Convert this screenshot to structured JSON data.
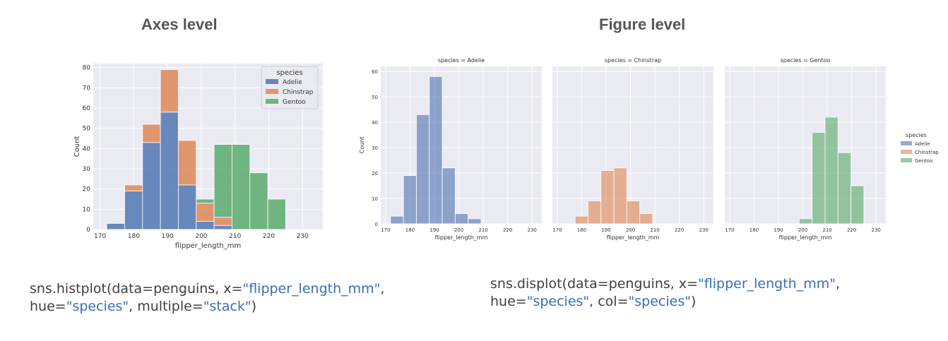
{
  "headings": {
    "axes_level": "Axes level",
    "figure_level": "Figure level"
  },
  "code": {
    "axes_level": [
      [
        [
          "sns.histplot(data=penguins, x=",
          "t"
        ],
        [
          "\"flipper_length_mm\"",
          "s"
        ],
        [
          ",",
          "t"
        ]
      ],
      [
        [
          "hue=",
          "t"
        ],
        [
          "\"species\"",
          "s"
        ],
        [
          ", multiple=",
          "t"
        ],
        [
          "\"stack\"",
          "s"
        ],
        [
          ")",
          "t"
        ]
      ]
    ],
    "figure_level": [
      [
        [
          "sns.displot(data=penguins, x=",
          "t"
        ],
        [
          "\"flipper_length_mm\"",
          "s"
        ],
        [
          ",",
          "t"
        ]
      ],
      [
        [
          "hue=",
          "t"
        ],
        [
          "\"species\"",
          "s"
        ],
        [
          ", col=",
          "t"
        ],
        [
          "\"species\"",
          "s"
        ],
        [
          ")",
          "t"
        ]
      ]
    ]
  },
  "colors": {
    "Adelie": "#4c72b0",
    "Chinstrap": "#dd8452",
    "Gentoo": "#55a868",
    "panel_bg": "#eaeaf2",
    "grid": "#ffffff",
    "text": "#333333"
  },
  "chart_data": [
    {
      "type": "bar",
      "subtype": "stacked-histogram",
      "xlabel": "flipper_length_mm",
      "ylabel": "Count",
      "xlim": [
        168,
        236
      ],
      "ylim": [
        0,
        82
      ],
      "xticks": [
        170,
        180,
        190,
        200,
        210,
        220,
        230
      ],
      "yticks": [
        0,
        10,
        20,
        30,
        40,
        50,
        60,
        70,
        80
      ],
      "grid": true,
      "legend": {
        "title": "species",
        "placement": "top-right",
        "entries": [
          "Adelie",
          "Chinstrap",
          "Gentoo"
        ]
      },
      "bin_edges": [
        172,
        177.3,
        182.6,
        187.9,
        193.2,
        198.5,
        203.8,
        209.1,
        214.4,
        219.7,
        225,
        230.3
      ],
      "series": [
        {
          "name": "Adelie",
          "values": [
            3,
            19,
            43,
            58,
            22,
            4,
            2,
            0,
            0,
            0,
            0
          ]
        },
        {
          "name": "Chinstrap",
          "values": [
            0,
            3,
            9,
            21,
            22,
            9,
            4,
            0,
            0,
            0,
            0
          ]
        },
        {
          "name": "Gentoo",
          "values": [
            0,
            0,
            0,
            0,
            0,
            2,
            36,
            42,
            28,
            15,
            0
          ]
        }
      ]
    },
    {
      "type": "bar",
      "subtype": "faceted-histogram",
      "xlabel": "flipper_length_mm",
      "ylabel": "Count",
      "xlim": [
        168,
        234
      ],
      "ylim": [
        0,
        62
      ],
      "xticks": [
        170,
        180,
        190,
        200,
        210,
        220,
        230
      ],
      "yticks": [
        0,
        10,
        20,
        30,
        40,
        50,
        60
      ],
      "grid": true,
      "legend": {
        "title": "species",
        "placement": "right",
        "entries": [
          "Adelie",
          "Chinstrap",
          "Gentoo"
        ]
      },
      "bin_edges": [
        172,
        177.3,
        182.6,
        187.9,
        193.2,
        198.5,
        203.8,
        209.1,
        214.4,
        219.7,
        225,
        230.3
      ],
      "panels": [
        {
          "title": "species = Adelie",
          "series": "Adelie",
          "values": [
            3,
            19,
            43,
            58,
            22,
            4,
            2,
            0,
            0,
            0,
            0
          ]
        },
        {
          "title": "species = Chinstrap",
          "series": "Chinstrap",
          "values": [
            0,
            3,
            9,
            21,
            22,
            9,
            4,
            0,
            0,
            0,
            0
          ]
        },
        {
          "title": "species = Gentoo",
          "series": "Gentoo",
          "values": [
            0,
            0,
            0,
            0,
            0,
            2,
            36,
            42,
            28,
            15,
            0
          ]
        }
      ]
    }
  ]
}
